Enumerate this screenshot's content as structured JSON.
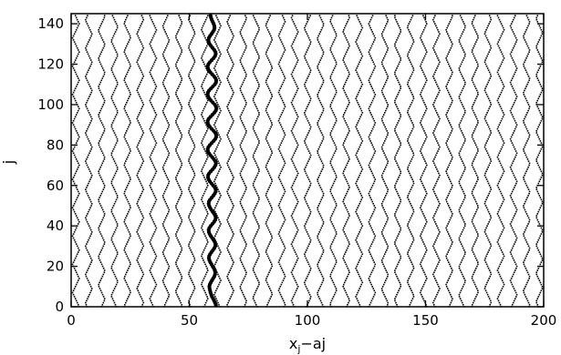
{
  "chart_data": {
    "type": "scatter",
    "title": "",
    "xlabel": "x_j−aj",
    "xlabel_main": "x",
    "xlabel_sub": "j",
    "xlabel_rest": "−aj",
    "ylabel": "j",
    "xlim": [
      0,
      200
    ],
    "ylim": [
      0,
      145
    ],
    "xticks": [
      0,
      50,
      100,
      150,
      200
    ],
    "yticks": [
      0,
      20,
      40,
      60,
      80,
      100,
      120,
      140
    ],
    "grid": false,
    "legend": "none",
    "series": [
      {
        "style": "small-dots",
        "description_points": "zig-zag traces, spacing ~5.5 in x, one point per j from 0 to 144",
        "traces_count": 37,
        "trace_x0_start": 2,
        "trace_spacing": 5.45,
        "wave_period_j": 14,
        "wave_amplitude": 1.4,
        "color": "#000000"
      },
      {
        "style": "large-dots",
        "description_points": "highlighted trace",
        "x": [
          61.5,
          61.2,
          60.9,
          60.5,
          60.1,
          59.6,
          59.3,
          59.0,
          58.8,
          58.6,
          58.5,
          58.7,
          59.1,
          59.6,
          60.1,
          60.6,
          60.9,
          61.0,
          60.8,
          60.4,
          59.9,
          59.4,
          58.9,
          58.5,
          58.3,
          58.4,
          58.8,
          59.4,
          60.0,
          60.6,
          61.0,
          61.1,
          60.8,
          60.3,
          59.7,
          59.1,
          58.6,
          58.3,
          58.2,
          58.5,
          59.1,
          59.8,
          60.5,
          61.0,
          61.2,
          61.0,
          60.5,
          59.9,
          59.3,
          58.8,
          58.4,
          58.2,
          58.3,
          58.8,
          59.5,
          60.2,
          60.8,
          61.2,
          61.2,
          60.8,
          60.1,
          59.4,
          58.7,
          58.2,
          57.9,
          58.0,
          58.4,
          59.1,
          59.9,
          60.6,
          61.1,
          61.3,
          61.0,
          60.4,
          59.7,
          58.9,
          58.3,
          57.9,
          57.8,
          58.1,
          58.7,
          59.5,
          60.3,
          61.0,
          61.4,
          61.4,
          61.0,
          60.3,
          59.5,
          58.7,
          58.1,
          57.8,
          57.8,
          58.2,
          59.0,
          59.8,
          60.6,
          61.2,
          61.5,
          61.3,
          60.8,
          60.0,
          59.2,
          58.5,
          58.0,
          57.8,
          57.9,
          58.4,
          59.2,
          60.0,
          60.8,
          61.3,
          61.4,
          61.1,
          60.5,
          59.7,
          58.9,
          58.3,
          57.9,
          57.8,
          58.1,
          58.7,
          59.5,
          60.3,
          60.9,
          61.2,
          61.1,
          60.6,
          59.9,
          59.2,
          58.6,
          58.2,
          58.1,
          58.3,
          58.8,
          59.4,
          60.0,
          60.5,
          60.7,
          60.6,
          60.3,
          59.9,
          59.5,
          59.2,
          59.0
        ],
        "y": [
          0,
          1,
          2,
          3,
          4,
          5,
          6,
          7,
          8,
          9,
          10,
          11,
          12,
          13,
          14,
          15,
          16,
          17,
          18,
          19,
          20,
          21,
          22,
          23,
          24,
          25,
          26,
          27,
          28,
          29,
          30,
          31,
          32,
          33,
          34,
          35,
          36,
          37,
          38,
          39,
          40,
          41,
          42,
          43,
          44,
          45,
          46,
          47,
          48,
          49,
          50,
          51,
          52,
          53,
          54,
          55,
          56,
          57,
          58,
          59,
          60,
          61,
          62,
          63,
          64,
          65,
          66,
          67,
          68,
          69,
          70,
          71,
          72,
          73,
          74,
          75,
          76,
          77,
          78,
          79,
          80,
          81,
          82,
          83,
          84,
          85,
          86,
          87,
          88,
          89,
          90,
          91,
          92,
          93,
          94,
          95,
          96,
          97,
          98,
          99,
          100,
          101,
          102,
          103,
          104,
          105,
          106,
          107,
          108,
          109,
          110,
          111,
          112,
          113,
          114,
          115,
          116,
          117,
          118,
          119,
          120,
          121,
          122,
          123,
          124,
          125,
          126,
          127,
          128,
          129,
          130,
          131,
          132,
          133,
          134,
          135,
          136,
          137,
          138,
          139,
          140,
          141,
          142,
          143,
          144
        ],
        "color": "#000000"
      }
    ]
  }
}
